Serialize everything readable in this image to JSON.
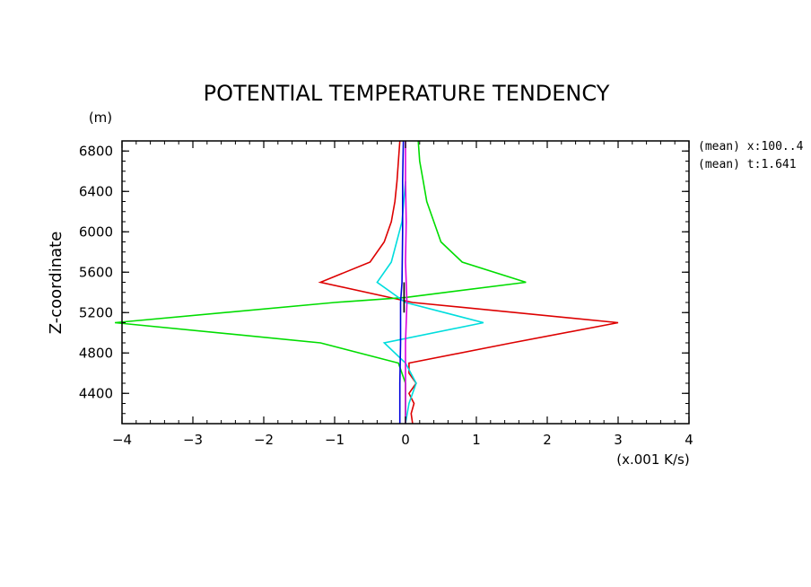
{
  "chart_data": {
    "type": "line",
    "title": "POTENTIAL TEMPERATURE TENDENCY",
    "xlabel": "(x.001 K/s)",
    "ylabel": "Z-coordinate",
    "y_unit": "(m)",
    "xlim": [
      -4,
      4
    ],
    "ylim": [
      4100,
      6900
    ],
    "x_ticks": [
      -4,
      -3,
      -2,
      -1,
      0,
      1,
      2,
      3,
      4
    ],
    "y_ticks": [
      4400,
      4800,
      5200,
      5600,
      6000,
      6400,
      6800
    ],
    "annotations": [
      "(mean) x:100..4",
      "(mean) t:1.641"
    ],
    "grid": false,
    "series": [
      {
        "color": "#dd0000",
        "points": [
          [
            0.1,
            4100
          ],
          [
            0.08,
            4200
          ],
          [
            0.12,
            4300
          ],
          [
            0.05,
            4400
          ],
          [
            0.15,
            4500
          ],
          [
            0.05,
            4600
          ],
          [
            0.05,
            4700
          ],
          [
            1.5,
            4900
          ],
          [
            3.0,
            5100
          ],
          [
            0.1,
            5300
          ],
          [
            -1.2,
            5500
          ],
          [
            -0.5,
            5700
          ],
          [
            -0.3,
            5900
          ],
          [
            -0.2,
            6100
          ],
          [
            -0.15,
            6300
          ],
          [
            -0.12,
            6500
          ],
          [
            -0.1,
            6700
          ],
          [
            -0.08,
            6900
          ]
        ]
      },
      {
        "color": "#00dd00",
        "points": [
          [
            0.0,
            4100
          ],
          [
            0.0,
            4300
          ],
          [
            0.0,
            4500
          ],
          [
            -0.1,
            4700
          ],
          [
            -1.2,
            4900
          ],
          [
            -4.1,
            5100
          ],
          [
            -1.0,
            5300
          ],
          [
            0.0,
            5350
          ],
          [
            1.7,
            5500
          ],
          [
            0.8,
            5700
          ],
          [
            0.5,
            5900
          ],
          [
            0.4,
            6100
          ],
          [
            0.3,
            6300
          ],
          [
            0.25,
            6500
          ],
          [
            0.2,
            6700
          ],
          [
            0.18,
            6900
          ]
        ]
      },
      {
        "color": "#00dddd",
        "points": [
          [
            0.0,
            4100
          ],
          [
            0.05,
            4300
          ],
          [
            0.15,
            4500
          ],
          [
            0.0,
            4700
          ],
          [
            -0.3,
            4900
          ],
          [
            1.1,
            5100
          ],
          [
            0.0,
            5300
          ],
          [
            -0.4,
            5500
          ],
          [
            -0.2,
            5700
          ],
          [
            -0.05,
            6100
          ],
          [
            0.0,
            6500
          ]
        ]
      },
      {
        "color": "#0000dd",
        "points": [
          [
            -0.08,
            4100
          ],
          [
            -0.08,
            4500
          ],
          [
            -0.07,
            4900
          ],
          [
            -0.07,
            5300
          ],
          [
            -0.05,
            5500
          ],
          [
            -0.04,
            6000
          ],
          [
            -0.04,
            6500
          ],
          [
            -0.03,
            6900
          ]
        ]
      },
      {
        "color": "#000000",
        "points": [
          [
            -0.02,
            5200
          ],
          [
            -0.02,
            5350
          ],
          [
            -0.02,
            5500
          ]
        ]
      },
      {
        "color": "#dd00dd",
        "points": [
          [
            0.0,
            4100
          ],
          [
            0.0,
            4500
          ],
          [
            0.0,
            4900
          ],
          [
            0.02,
            5300
          ],
          [
            0.0,
            5700
          ],
          [
            0.01,
            6100
          ],
          [
            0.0,
            6500
          ],
          [
            0.0,
            6900
          ]
        ]
      }
    ]
  }
}
